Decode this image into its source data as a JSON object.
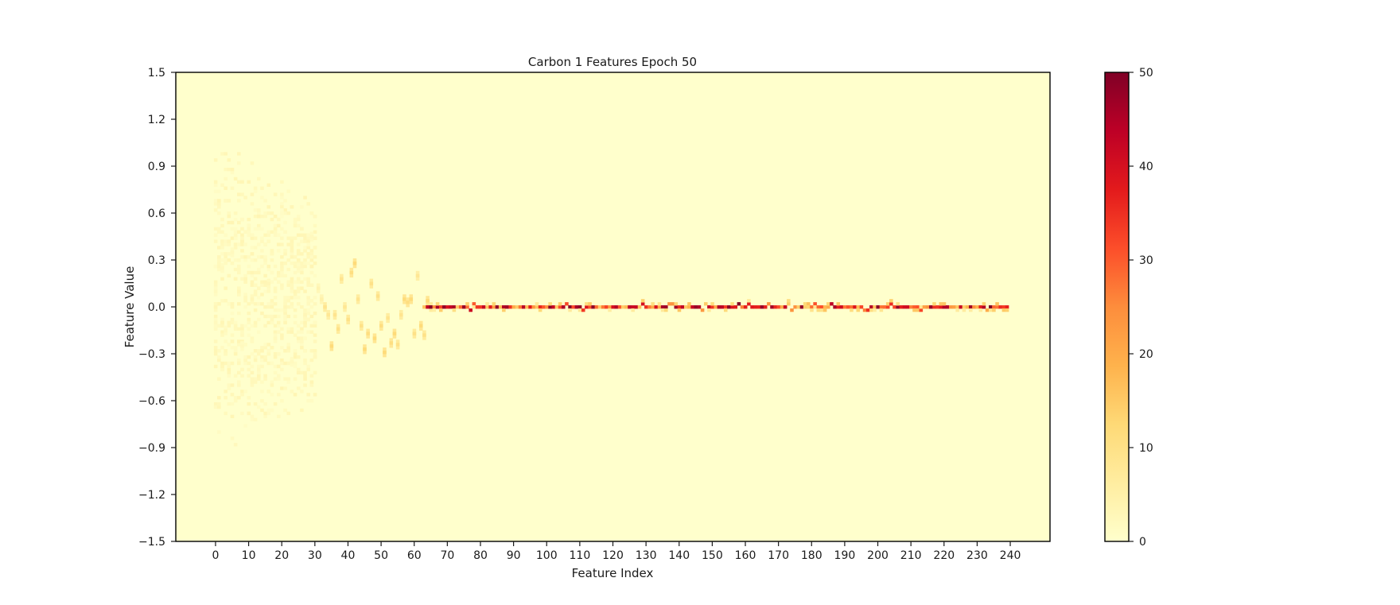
{
  "chart_data": {
    "type": "heatmap",
    "title": "Carbon 1 Features Epoch 50",
    "xlabel": "Feature Index",
    "ylabel": "Feature Value",
    "xlim": [
      -12,
      252
    ],
    "ylim": [
      -1.5,
      1.5
    ],
    "x_ticks": [
      0,
      10,
      20,
      30,
      40,
      50,
      60,
      70,
      80,
      90,
      100,
      110,
      120,
      130,
      140,
      150,
      160,
      170,
      180,
      190,
      200,
      210,
      220,
      230,
      240
    ],
    "x_tick_labels": [
      "0",
      "10",
      "20",
      "30",
      "40",
      "50",
      "60",
      "70",
      "80",
      "90",
      "100",
      "110",
      "120",
      "130",
      "140",
      "150",
      "160",
      "170",
      "180",
      "190",
      "200",
      "210",
      "220",
      "230",
      "240"
    ],
    "y_ticks": [
      -1.5,
      -1.2,
      -0.9,
      -0.6,
      -0.3,
      0.0,
      0.3,
      0.6,
      0.9,
      1.2,
      1.5
    ],
    "y_tick_labels": [
      "−1.5",
      "−1.2",
      "−0.9",
      "−0.6",
      "−0.3",
      "0.0",
      "0.3",
      "0.6",
      "0.9",
      "1.2",
      "1.5"
    ],
    "bin_height": 0.02,
    "feature_count": 240,
    "colormap": "YlOrRd",
    "colormap_stops": [
      "#ffffcc",
      "#ffeda0",
      "#fed976",
      "#feb24c",
      "#fd8d3c",
      "#fc4e2a",
      "#e31a1c",
      "#bd0026",
      "#800026"
    ],
    "colorbar": {
      "range": [
        0,
        50
      ],
      "ticks": [
        0,
        10,
        20,
        30,
        40,
        50
      ],
      "tick_labels": [
        "0",
        "10",
        "20",
        "30",
        "40",
        "50"
      ]
    },
    "grid": false,
    "description_of_cells": {
      "features_0_to_30": "diffuse low counts spread between about -1.2 and 0.7",
      "features_30_to_62": "oscillating concentrated cells between about -0.3 and 0.35",
      "features_63_to_239": "sharp band at 0.0 with counts mostly 15-50"
    },
    "cells": [
      [
        0,
        0.0,
        3
      ],
      [
        0,
        0.1,
        2
      ],
      [
        0,
        -0.1,
        2
      ],
      [
        2,
        0.25,
        2
      ],
      [
        3,
        -0.15,
        2
      ],
      [
        5,
        0.35,
        2
      ],
      [
        7,
        0.1,
        3
      ],
      [
        8,
        -0.25,
        2
      ],
      [
        10,
        0.5,
        2
      ],
      [
        11,
        0.05,
        3
      ],
      [
        13,
        -0.4,
        2
      ],
      [
        15,
        0.3,
        2
      ],
      [
        16,
        0.15,
        3
      ],
      [
        18,
        -0.2,
        2
      ],
      [
        20,
        0.6,
        1
      ],
      [
        21,
        0.0,
        3
      ],
      [
        23,
        -0.35,
        2
      ],
      [
        25,
        0.25,
        2
      ],
      [
        27,
        -0.05,
        3
      ],
      [
        29,
        0.45,
        2
      ],
      [
        31,
        0.12,
        4
      ],
      [
        32,
        0.05,
        5
      ],
      [
        33,
        0.0,
        9
      ],
      [
        34,
        -0.05,
        8
      ],
      [
        35,
        -0.25,
        12
      ],
      [
        36,
        -0.05,
        9
      ],
      [
        37,
        -0.14,
        10
      ],
      [
        38,
        0.18,
        9
      ],
      [
        39,
        0.0,
        8
      ],
      [
        40,
        -0.08,
        10
      ],
      [
        41,
        0.22,
        11
      ],
      [
        42,
        0.28,
        12
      ],
      [
        43,
        0.05,
        9
      ],
      [
        44,
        -0.12,
        10
      ],
      [
        45,
        -0.27,
        12
      ],
      [
        46,
        -0.17,
        11
      ],
      [
        47,
        0.15,
        10
      ],
      [
        48,
        -0.2,
        12
      ],
      [
        49,
        0.07,
        10
      ],
      [
        50,
        -0.12,
        11
      ],
      [
        51,
        -0.29,
        12
      ],
      [
        52,
        -0.07,
        9
      ],
      [
        53,
        -0.23,
        11
      ],
      [
        54,
        -0.17,
        12
      ],
      [
        55,
        -0.24,
        10
      ],
      [
        56,
        -0.05,
        9
      ],
      [
        57,
        0.05,
        12
      ],
      [
        58,
        0.03,
        11
      ],
      [
        59,
        0.05,
        12
      ],
      [
        60,
        -0.17,
        10
      ],
      [
        61,
        0.2,
        8
      ],
      [
        62,
        -0.12,
        12
      ],
      [
        63,
        -0.18,
        10
      ],
      [
        64,
        0.04,
        12
      ],
      [
        65,
        0.0,
        10
      ]
    ]
  }
}
